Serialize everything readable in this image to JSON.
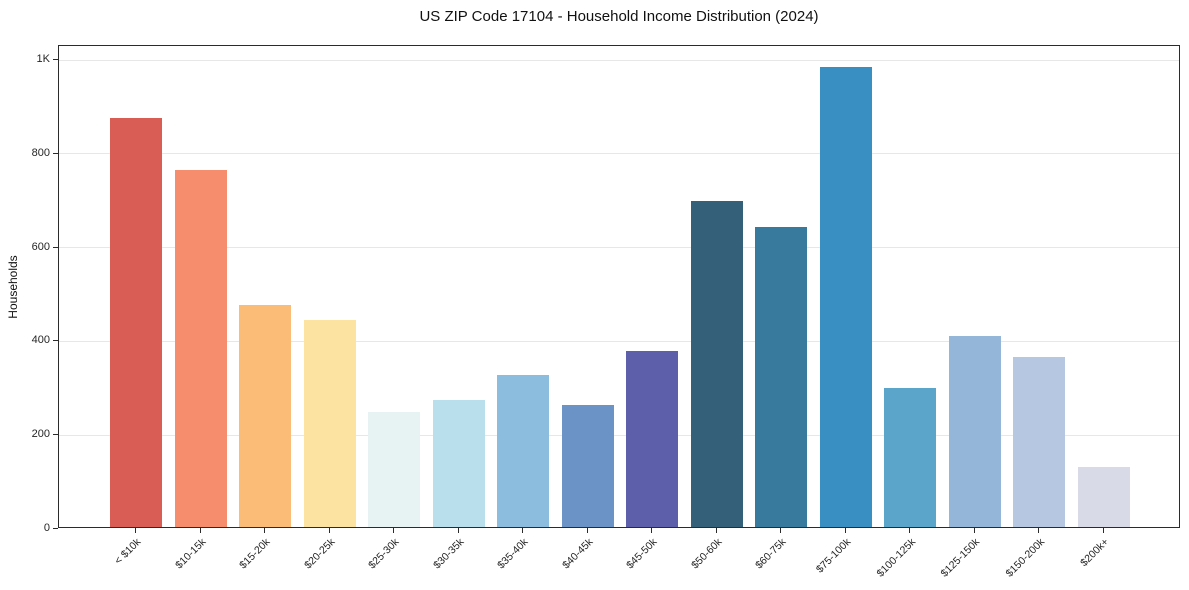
{
  "chart_data": {
    "type": "bar",
    "title": "US ZIP Code 17104 - Household Income Distribution (2024)",
    "xlabel": "",
    "ylabel": "Households",
    "categories": [
      "< $10k",
      "$10-15k",
      "$15-20k",
      "$20-25k",
      "$25-30k",
      "$30-35k",
      "$35-40k",
      "$40-45k",
      "$45-50k",
      "$50-60k",
      "$60-75k",
      "$75-100k",
      "$100-125k",
      "$125-150k",
      "$150-200k",
      "$200k+"
    ],
    "values": [
      872,
      762,
      474,
      441,
      245,
      271,
      324,
      260,
      375,
      695,
      640,
      980,
      296,
      407,
      362,
      128
    ],
    "bar_colors": [
      "#d95d55",
      "#f68d6c",
      "#fbbc78",
      "#fde3a1",
      "#e7f3f2",
      "#b9dfed",
      "#8cbcde",
      "#6b93c5",
      "#5d5fab",
      "#34607a",
      "#377a9e",
      "#3a8fc2",
      "#5ba4ca",
      "#93b6d9",
      "#b5c7e1",
      "#d8dae7"
    ],
    "ylim": [
      0,
      1030
    ],
    "yticks": [
      {
        "label": "0",
        "value": 0
      },
      {
        "label": "200",
        "value": 200
      },
      {
        "label": "400",
        "value": 400
      },
      {
        "label": "600",
        "value": 600
      },
      {
        "label": "800",
        "value": 800
      },
      {
        "label": "1K",
        "value": 1000
      }
    ],
    "grid": "horizontal",
    "legend": "none"
  },
  "colors": {
    "background": "#ffffff",
    "gridline": "#e7e7e7",
    "spine": "#2b2b2b",
    "text": "#1a1a1a"
  }
}
